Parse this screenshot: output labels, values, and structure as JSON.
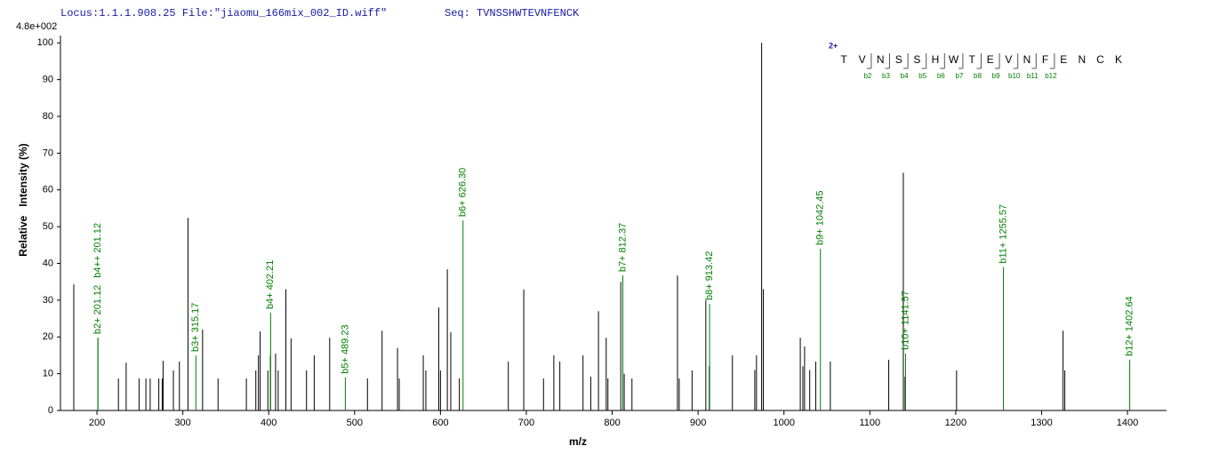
{
  "chart_data": {
    "type": "stem",
    "header_locus": "Locus:1.1.1.908.25 File:\"jiaomu_166mix_002_ID.wiff\"",
    "header_seq": "Seq: TVNSSHWTEVNFENCK",
    "intensity_max_label": "4.8e+002",
    "y_label": "Relative   Intensity (%)",
    "x_label": "m/z",
    "xlim": [
      157.5,
      1445.5
    ],
    "ylim": [
      0,
      102
    ],
    "xticks": [
      200,
      300,
      400,
      500,
      600,
      700,
      800,
      900,
      1000,
      1100,
      1200,
      1300,
      1400
    ],
    "yticks": [
      0,
      10,
      20,
      30,
      40,
      50,
      60,
      70,
      80,
      90,
      100
    ],
    "color": "#000000",
    "x": [
      173,
      225,
      234,
      249,
      257,
      262,
      272,
      276,
      277,
      289,
      296,
      306,
      323,
      341,
      374,
      385,
      388,
      390,
      399,
      402,
      408,
      411,
      420,
      426,
      444,
      453,
      471,
      515,
      532,
      550,
      552,
      580,
      583,
      598,
      600,
      608,
      612,
      622,
      679,
      697,
      720,
      732,
      739,
      766,
      775,
      784,
      793,
      795,
      810,
      814,
      823,
      876,
      878,
      893,
      909,
      913,
      940,
      966,
      968,
      974,
      976,
      1019,
      1022,
      1024,
      1030,
      1037,
      1054,
      1122,
      1139,
      1141,
      1201,
      1325,
      1327
    ],
    "values": [
      34.3,
      8.7,
      13,
      8.7,
      8.7,
      8.7,
      8.7,
      8.7,
      13.5,
      10.9,
      13.3,
      52.4,
      22,
      8.7,
      8.7,
      10.9,
      15,
      21.5,
      10.9,
      15,
      15.5,
      10.9,
      33,
      19.6,
      10.9,
      15,
      19.8,
      8.7,
      21.7,
      17,
      8.7,
      15,
      10.9,
      28,
      10.9,
      38.4,
      21.3,
      8.7,
      13.3,
      32.9,
      8.7,
      15,
      13.3,
      15,
      9.2,
      27,
      19.8,
      8.7,
      35,
      10,
      8.7,
      36.7,
      8.7,
      10.9,
      30,
      12,
      15,
      11,
      15,
      100,
      33,
      19.8,
      12,
      17.4,
      11,
      13.3,
      13.3,
      13.8,
      64.7,
      9.2,
      10.9,
      21.7,
      10.9
    ],
    "annotated_peaks": {
      "color": "#008000",
      "x": [
        201.12,
        201.12,
        315.17,
        402.21,
        489.23,
        626.3,
        812.37,
        913.42,
        1042.45,
        1141.57,
        1255.57,
        1402.64
      ],
      "values": [
        19.8,
        19.8,
        15,
        26.6,
        9,
        51.7,
        36.7,
        29,
        44,
        15.5,
        39,
        13.8
      ],
      "labels": [
        "b2+ 201.12",
        "b4++ 201.12",
        "b3+ 315.17",
        "b4+ 402.21",
        "b5+ 489.23",
        "b6+ 626.30",
        "b7+ 812.37",
        "b8+ 913.42",
        "b9+ 1042.45",
        "b10+ 1141.57",
        "b11+ 1255.57",
        "b12+ 1402.64"
      ]
    },
    "sequence": {
      "charge": "2+",
      "residues": [
        "T",
        "V",
        "N",
        "S",
        "S",
        "H",
        "W",
        "T",
        "E",
        "V",
        "N",
        "F",
        "E",
        "N",
        "C",
        "K"
      ],
      "ions": [
        "b2",
        "b3",
        "b4",
        "b5",
        "b6",
        "b7",
        "b8",
        "b9",
        "b10",
        "b11",
        "b12"
      ]
    }
  }
}
